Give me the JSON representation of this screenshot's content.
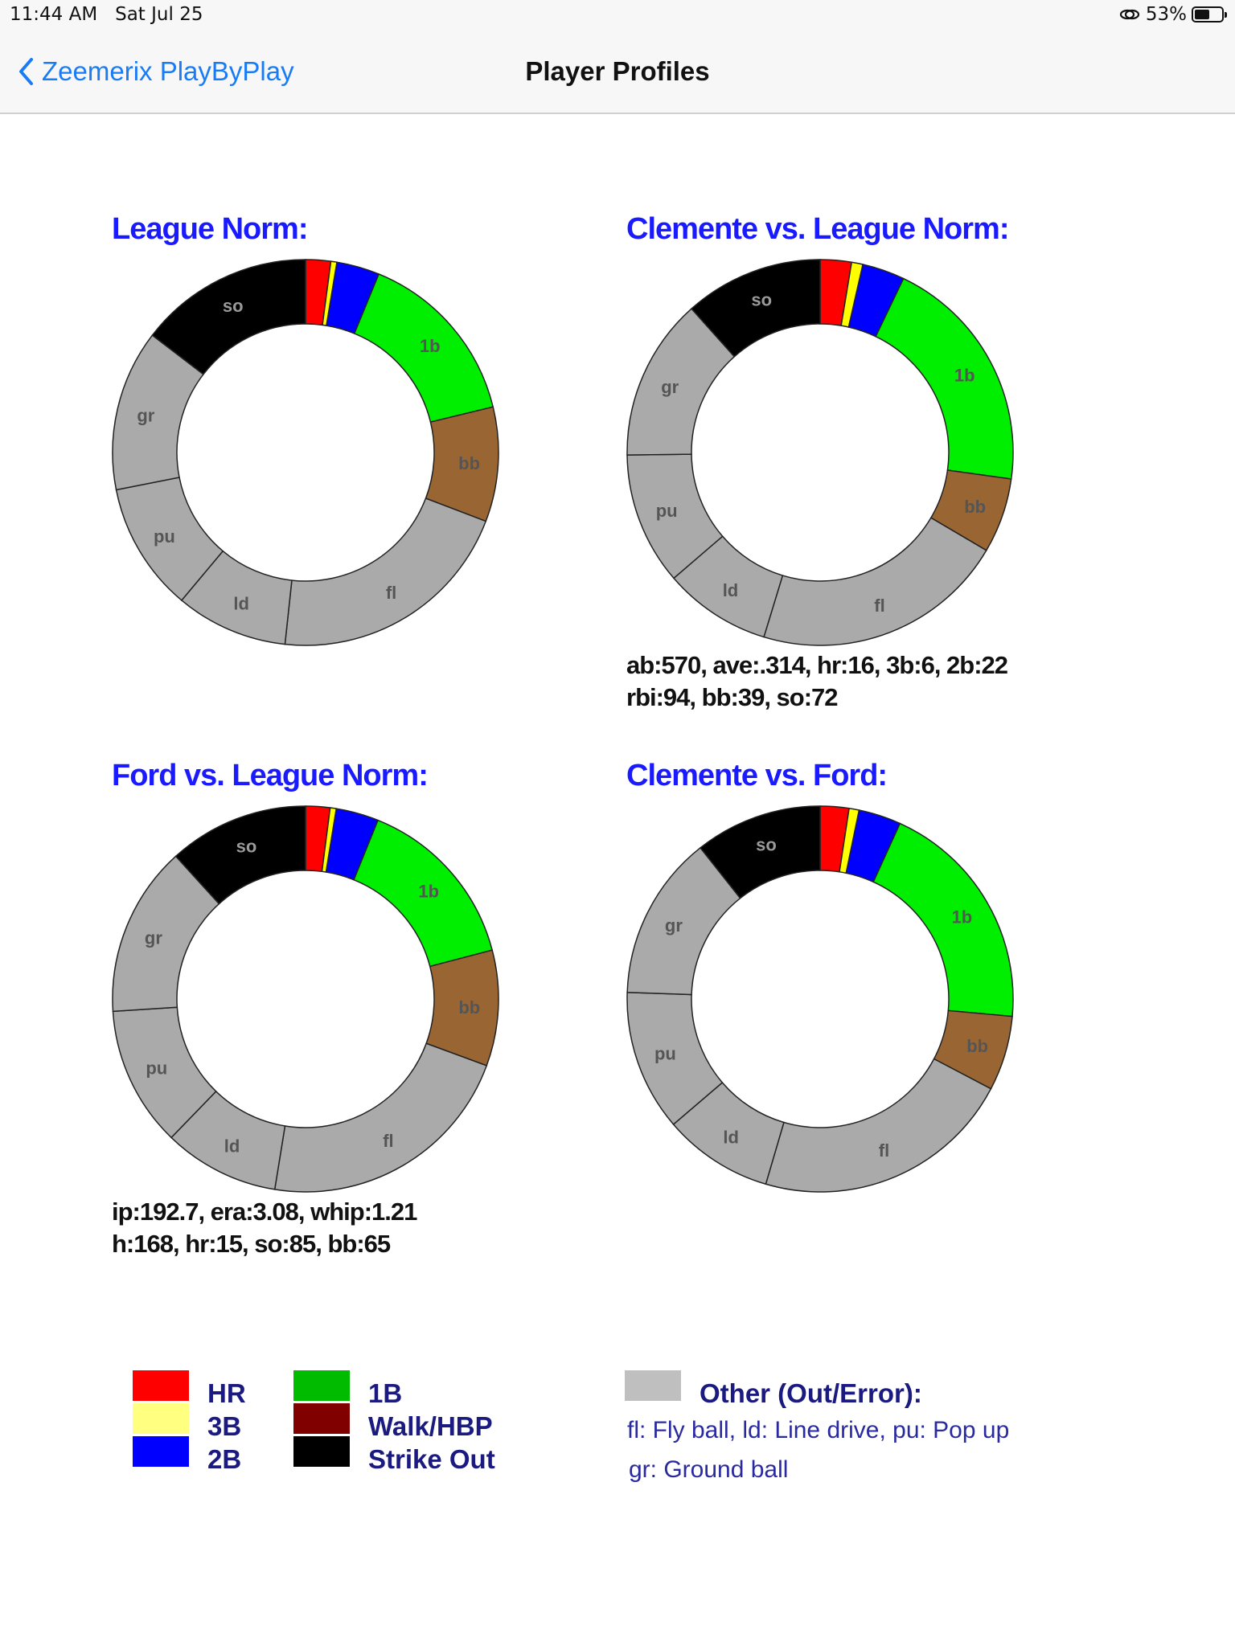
{
  "status_bar": {
    "time": "11:44 AM",
    "date": "Sat Jul 25",
    "battery": "53%"
  },
  "nav": {
    "back_label": "Zeemerix PlayByPlay",
    "title": "Player Profiles"
  },
  "colors": {
    "hr": "#ff0000",
    "3b": "#ffff00",
    "2b": "#0000ff",
    "1b": "#00ee00",
    "bb": "#996633",
    "so": "#000000",
    "other": "#aaaaaa"
  },
  "charts": [
    {
      "title": "League Norm:",
      "stats": [],
      "chart_data": {
        "type": "pie",
        "segments": [
          {
            "key": "hr",
            "label": "",
            "value": 2.1
          },
          {
            "key": "3b",
            "label": "",
            "value": 0.5
          },
          {
            "key": "2b",
            "label": "",
            "value": 3.6
          },
          {
            "key": "1b",
            "label": "1b",
            "value": 15.0
          },
          {
            "key": "bb",
            "label": "bb",
            "value": 9.6
          },
          {
            "key": "fl",
            "label": "fl",
            "value": 20.9
          },
          {
            "key": "ld",
            "label": "ld",
            "value": 9.4
          },
          {
            "key": "pu",
            "label": "pu",
            "value": 10.8
          },
          {
            "key": "gr",
            "label": "gr",
            "value": 13.5
          },
          {
            "key": "so",
            "label": "so",
            "value": 14.6
          }
        ]
      }
    },
    {
      "title": "Clemente vs. League Norm:",
      "stats": [
        "ab:570, ave:.314, hr:16, 3b:6, 2b:22",
        "rbi:94, bb:39, so:72"
      ],
      "chart_data": {
        "type": "pie",
        "segments": [
          {
            "key": "hr",
            "label": "",
            "value": 2.5
          },
          {
            "key": "3b",
            "label": "",
            "value": 0.9
          },
          {
            "key": "2b",
            "label": "",
            "value": 3.4
          },
          {
            "key": "1b",
            "label": "1b",
            "value": 19.2
          },
          {
            "key": "bb",
            "label": "bb",
            "value": 6.0
          },
          {
            "key": "fl",
            "label": "fl",
            "value": 20.3
          },
          {
            "key": "ld",
            "label": "ld",
            "value": 8.6
          },
          {
            "key": "pu",
            "label": "pu",
            "value": 10.6
          },
          {
            "key": "gr",
            "label": "gr",
            "value": 13.0
          },
          {
            "key": "so",
            "label": "so",
            "value": 11.1
          }
        ]
      }
    },
    {
      "title": "Ford vs. League Norm:",
      "stats": [
        "ip:192.7, era:3.08, whip:1.21",
        "h:168, hr:15, so:85, bb:65"
      ],
      "chart_data": {
        "type": "pie",
        "segments": [
          {
            "key": "hr",
            "label": "",
            "value": 2.0
          },
          {
            "key": "3b",
            "label": "",
            "value": 0.5
          },
          {
            "key": "2b",
            "label": "",
            "value": 3.5
          },
          {
            "key": "1b",
            "label": "1b",
            "value": 14.5
          },
          {
            "key": "bb",
            "label": "bb",
            "value": 9.5
          },
          {
            "key": "fl",
            "label": "fl",
            "value": 21.5
          },
          {
            "key": "ld",
            "label": "ld",
            "value": 9.5
          },
          {
            "key": "pu",
            "label": "pu",
            "value": 11.5
          },
          {
            "key": "gr",
            "label": "gr",
            "value": 14.0
          },
          {
            "key": "so",
            "label": "so",
            "value": 11.5
          }
        ]
      }
    },
    {
      "title": "Clemente vs. Ford:",
      "stats": [],
      "chart_data": {
        "type": "pie",
        "segments": [
          {
            "key": "hr",
            "label": "",
            "value": 2.3
          },
          {
            "key": "3b",
            "label": "",
            "value": 0.8
          },
          {
            "key": "2b",
            "label": "",
            "value": 3.4
          },
          {
            "key": "1b",
            "label": "1b",
            "value": 18.8
          },
          {
            "key": "bb",
            "label": "bb",
            "value": 6.0
          },
          {
            "key": "fl",
            "label": "fl",
            "value": 20.9
          },
          {
            "key": "ld",
            "label": "ld",
            "value": 8.8
          },
          {
            "key": "pu",
            "label": "pu",
            "value": 11.3
          },
          {
            "key": "gr",
            "label": "gr",
            "value": 13.2
          },
          {
            "key": "so",
            "label": "so",
            "value": 10.2
          }
        ]
      }
    }
  ],
  "legend": {
    "items": [
      {
        "label": "HR",
        "color": "#ff0000"
      },
      {
        "label": "3B",
        "color": "#ffff80"
      },
      {
        "label": "2B",
        "color": "#0000ff"
      },
      {
        "label": "1B",
        "color": "#00bb00"
      },
      {
        "label": "Walk/HBP",
        "color": "#800000"
      },
      {
        "label": "Strike Out",
        "color": "#000000"
      }
    ],
    "other": {
      "label": "Other (Out/Error):",
      "color": "#bfbfbf",
      "lines": [
        "fl: Fly ball, ld: Line drive, pu: Pop up",
        "gr: Ground ball"
      ]
    }
  }
}
